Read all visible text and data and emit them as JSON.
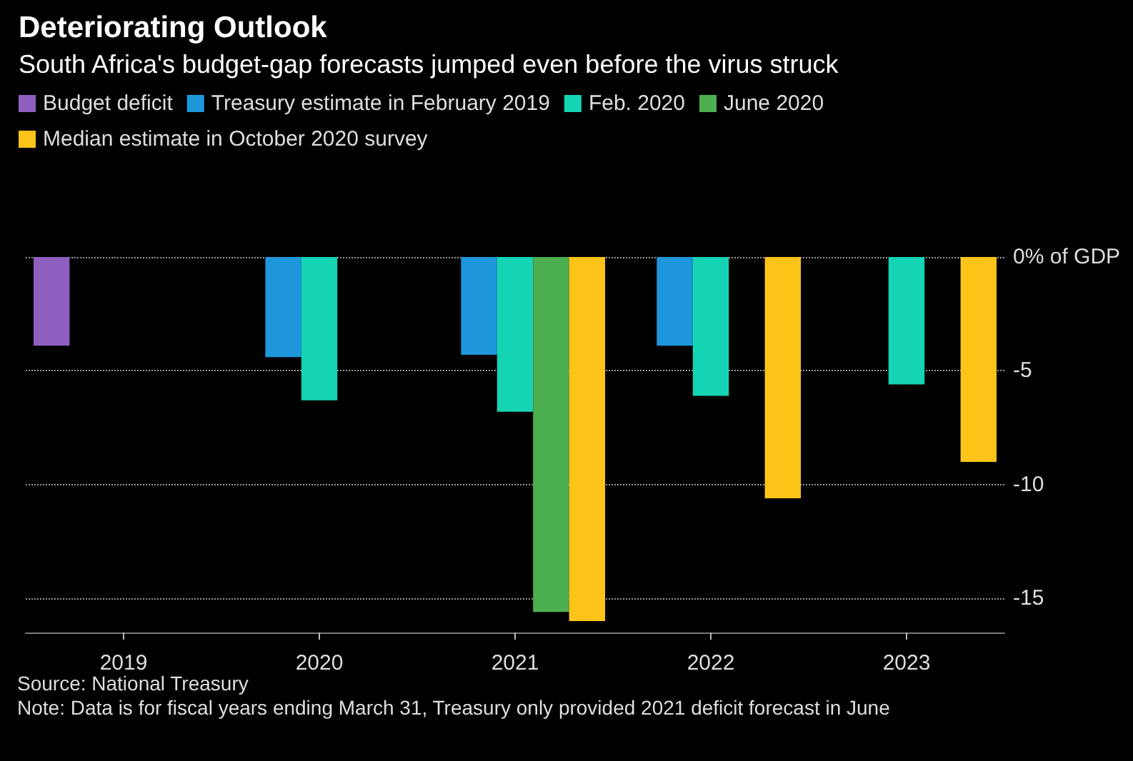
{
  "chart_data": {
    "type": "bar",
    "title": "Deteriorating Outlook",
    "subtitle": "South Africa's budget-gap forecasts jumped even before the virus struck",
    "categories": [
      "2019",
      "2020",
      "2021",
      "2022",
      "2023"
    ],
    "series": [
      {
        "name": "Budget deficit",
        "color": "#8f5fc0",
        "values": [
          -3.9,
          null,
          null,
          null,
          null
        ]
      },
      {
        "name": "Treasury estimate in February 2019",
        "color": "#1e96dc",
        "values": [
          null,
          -4.4,
          -4.3,
          -3.9,
          null
        ]
      },
      {
        "name": "Feb. 2020",
        "color": "#14d4b4",
        "values": [
          null,
          -6.3,
          -6.8,
          -6.1,
          -5.6
        ]
      },
      {
        "name": "June 2020",
        "color": "#4caf50",
        "values": [
          null,
          null,
          -15.6,
          null,
          null
        ]
      },
      {
        "name": "Median estimate in October 2020 survey",
        "color": "#fcc419",
        "values": [
          null,
          null,
          -16.0,
          -10.6,
          -9.0
        ]
      }
    ],
    "ylim": [
      -16.5,
      0
    ],
    "yticks": [
      {
        "value": 0,
        "label": "0% of GDP"
      },
      -5,
      -10,
      -15
    ],
    "grid": "y",
    "legend": "top left",
    "annotations": [
      "Source: National Treasury",
      "Note: Data is for fiscal years ending March 31, Treasury only provided 2021 deficit forecast in June"
    ]
  }
}
